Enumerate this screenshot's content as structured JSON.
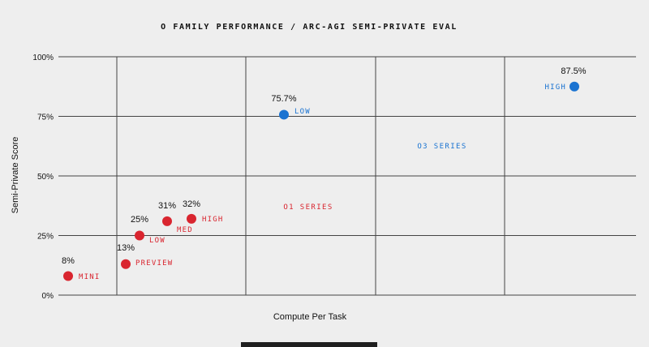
{
  "chart_data": {
    "type": "scatter",
    "title": "O FAMILY PERFORMANCE / ARC-AGI SEMI-PRIVATE EVAL",
    "xlabel": "Compute Per Task",
    "ylabel": "Semi-Private Score",
    "ylim": [
      0,
      100
    ],
    "yticks": [
      {
        "value": 0,
        "label": "0%"
      },
      {
        "value": 25,
        "label": "25%"
      },
      {
        "value": 50,
        "label": "50%"
      },
      {
        "value": 75,
        "label": "75%"
      },
      {
        "value": 100,
        "label": "100%"
      }
    ],
    "grid": true,
    "series": [
      {
        "name": "O1 SERIES",
        "color": "#d9252f",
        "points": [
          {
            "label": "MINI",
            "y": 8,
            "value_label": "8%"
          },
          {
            "label": "PREVIEW",
            "y": 13,
            "value_label": "13%"
          },
          {
            "label": "LOW",
            "y": 25,
            "value_label": "25%"
          },
          {
            "label": "MED",
            "y": 31,
            "value_label": "31%"
          },
          {
            "label": "HIGH",
            "y": 32,
            "value_label": "32%"
          }
        ]
      },
      {
        "name": "O3 SERIES",
        "color": "#1a73d1",
        "points": [
          {
            "label": "LOW",
            "y": 75.7,
            "value_label": "75.7%"
          },
          {
            "label": "HIGH",
            "y": 87.5,
            "value_label": "87.5%"
          }
        ]
      }
    ]
  }
}
